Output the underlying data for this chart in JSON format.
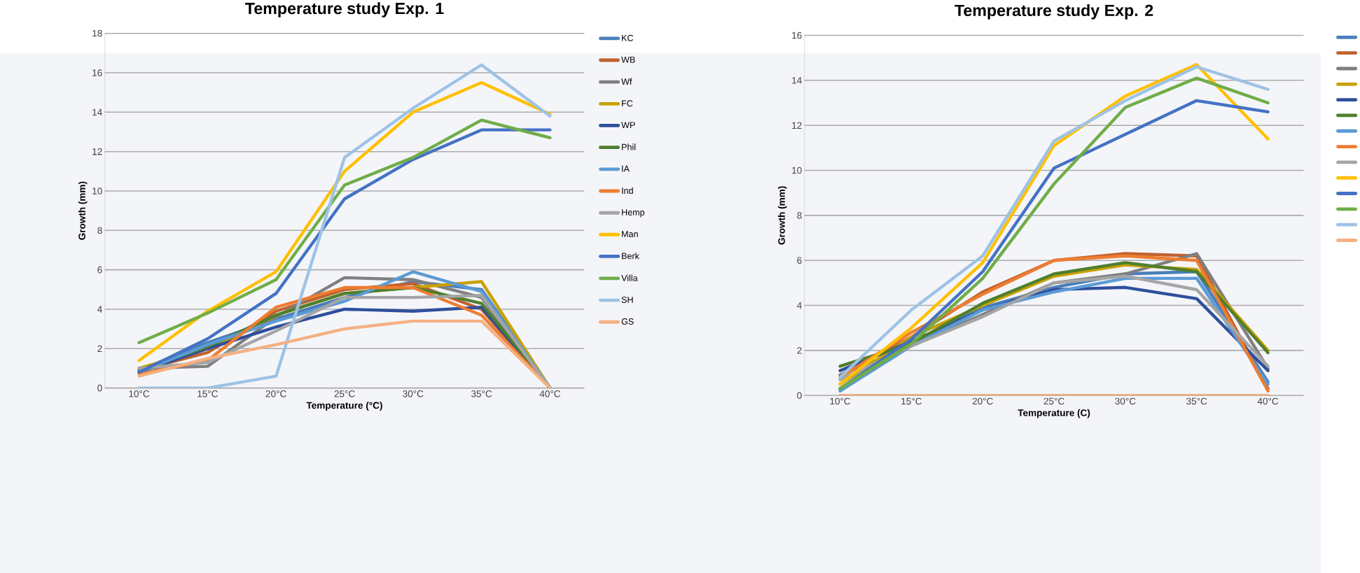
{
  "chart_data": [
    {
      "type": "line",
      "title": "Temperature study Exp. 1",
      "xlabel": "Temperature (°C)",
      "ylabel": "Growth (mm)",
      "categories": [
        "10°C",
        "15°C",
        "20°C",
        "25°C",
        "30°C",
        "35°C",
        "40°C"
      ],
      "ylim": [
        0,
        18
      ],
      "yticks": [
        0,
        2,
        4,
        6,
        8,
        10,
        12,
        14,
        16,
        18
      ],
      "grid": "y",
      "legend": "right",
      "marker": "none",
      "line_style": "solid",
      "series": [
        {
          "name": "KC",
          "color": "#4a7ebb",
          "values": [
            0.9,
            2.3,
            3.5,
            4.6,
            5.4,
            5.0,
            0
          ]
        },
        {
          "name": "WB",
          "color": "#c0622f",
          "values": [
            0.9,
            1.8,
            3.9,
            5.0,
            5.3,
            4.0,
            0
          ]
        },
        {
          "name": "Wf",
          "color": "#7f7f7f",
          "values": [
            1.0,
            1.1,
            3.6,
            5.6,
            5.5,
            4.6,
            0
          ]
        },
        {
          "name": "FC",
          "color": "#c9a100",
          "values": [
            1.0,
            2.0,
            3.7,
            4.8,
            5.1,
            5.4,
            0
          ]
        },
        {
          "name": "WP",
          "color": "#2e4f9b",
          "values": [
            0.8,
            2.0,
            3.1,
            4.0,
            3.9,
            4.1,
            0
          ]
        },
        {
          "name": "Phil",
          "color": "#4f7f2f",
          "values": [
            0.9,
            2.1,
            3.7,
            4.8,
            5.1,
            4.3,
            0
          ]
        },
        {
          "name": "IA",
          "color": "#5b9bd5",
          "values": [
            0.8,
            2.2,
            3.4,
            4.4,
            5.9,
            4.9,
            0
          ]
        },
        {
          "name": "Ind",
          "color": "#ed7d31",
          "values": [
            0.7,
            1.4,
            4.1,
            5.1,
            5.1,
            3.7,
            0
          ]
        },
        {
          "name": "Hemp",
          "color": "#a5a5a5",
          "values": [
            1.0,
            1.3,
            2.9,
            4.6,
            4.6,
            4.7,
            0
          ]
        },
        {
          "name": "Man",
          "color": "#ffc000",
          "values": [
            1.4,
            3.9,
            5.9,
            11.0,
            14.0,
            15.5,
            13.9
          ]
        },
        {
          "name": "Berk",
          "color": "#4472c4",
          "values": [
            0.8,
            2.5,
            4.8,
            9.6,
            11.6,
            13.1,
            13.1
          ]
        },
        {
          "name": "Villa",
          "color": "#70ad47",
          "values": [
            2.3,
            3.8,
            5.5,
            10.3,
            11.7,
            13.6,
            12.7
          ]
        },
        {
          "name": "SH",
          "color": "#9dc3e6",
          "values": [
            0,
            0,
            0.6,
            11.7,
            14.2,
            16.4,
            13.8
          ]
        },
        {
          "name": "GS",
          "color": "#f4b183",
          "values": [
            0.6,
            1.5,
            2.2,
            3.0,
            3.4,
            3.4,
            0
          ]
        }
      ]
    },
    {
      "type": "line",
      "title": "Temperature study Exp. 2",
      "xlabel": "Temperature (C)",
      "ylabel": "Growth (mm)",
      "categories": [
        "10°C",
        "15°C",
        "20°C",
        "25°C",
        "30°C",
        "35°C",
        "40°C"
      ],
      "ylim": [
        0,
        16
      ],
      "yticks": [
        0,
        2,
        4,
        6,
        8,
        10,
        12,
        14,
        16
      ],
      "grid": "y",
      "legend": "right",
      "marker": "none",
      "line_style": "solid",
      "series": [
        {
          "color": "#4a7ebb",
          "values": [
            0.3,
            2.3,
            3.9,
            4.8,
            5.4,
            5.5,
            0.6
          ]
        },
        {
          "color": "#c0622f",
          "values": [
            0.9,
            2.6,
            4.6,
            6.0,
            6.3,
            6.2,
            0.3
          ]
        },
        {
          "color": "#7f7f7f",
          "values": [
            0.9,
            2.2,
            3.6,
            5.0,
            5.4,
            6.3,
            1.2
          ]
        },
        {
          "color": "#c9a100",
          "values": [
            0.5,
            2.6,
            4.0,
            5.3,
            5.8,
            5.6,
            2.0
          ]
        },
        {
          "color": "#2e4f9b",
          "values": [
            1.1,
            2.4,
            3.8,
            4.7,
            4.8,
            4.3,
            1.1
          ]
        },
        {
          "color": "#4f7f2f",
          "values": [
            1.3,
            2.3,
            4.1,
            5.4,
            5.9,
            5.5,
            1.9
          ]
        },
        {
          "color": "#5b9bd5",
          "values": [
            0.2,
            2.2,
            3.8,
            4.6,
            5.2,
            5.2,
            0.5
          ]
        },
        {
          "color": "#ed7d31",
          "values": [
            0.8,
            2.8,
            4.5,
            6.0,
            6.2,
            6.0,
            0.2
          ]
        },
        {
          "color": "#a5a5a5",
          "values": [
            0.7,
            2.2,
            3.5,
            5.0,
            5.3,
            4.7,
            1.3
          ]
        },
        {
          "color": "#ffc000",
          "values": [
            0.5,
            3.0,
            5.9,
            11.1,
            13.3,
            14.7,
            11.4
          ]
        },
        {
          "color": "#4472c4",
          "values": [
            0.3,
            2.5,
            5.5,
            10.1,
            11.6,
            13.1,
            12.6
          ]
        },
        {
          "color": "#70ad47",
          "values": [
            0.3,
            2.3,
            5.2,
            9.4,
            12.8,
            14.1,
            13.0
          ]
        },
        {
          "color": "#9dc3e6",
          "values": [
            0.8,
            3.8,
            6.2,
            11.3,
            13.1,
            14.6,
            13.6
          ]
        },
        {
          "color": "#f4b183",
          "values": [
            0,
            0,
            0,
            0,
            0,
            0,
            0
          ]
        }
      ]
    }
  ]
}
